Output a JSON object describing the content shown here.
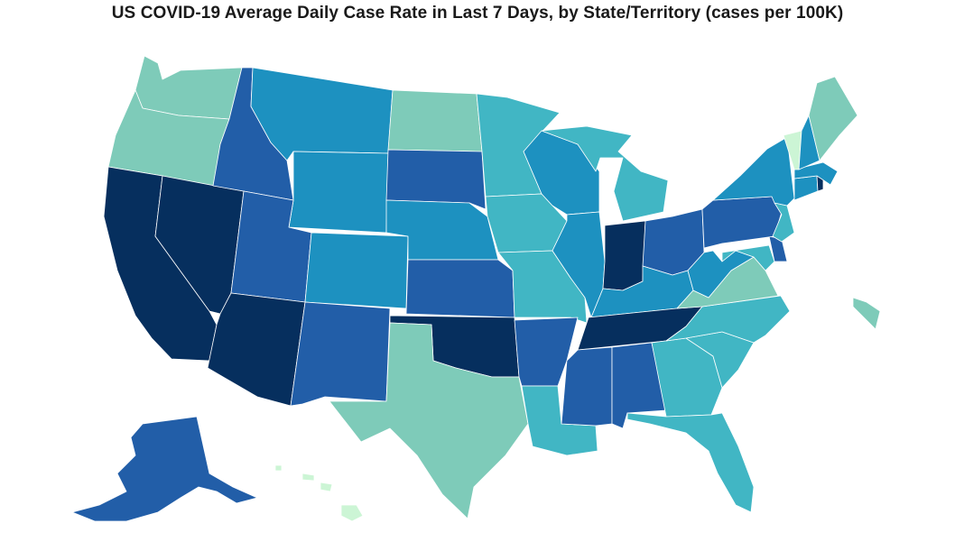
{
  "title": "US COVID-19 Average Daily Case Rate in Last 7 Days, by State/Territory (cases per 100K)",
  "color_scale": {
    "lightest": "#ccf5d5",
    "level2": "#7ecbb9",
    "level3": "#41b6c4",
    "level4": "#1d91c0",
    "level5": "#225ea8",
    "darkest": "#062f5e"
  },
  "states": {
    "WA": "level2",
    "OR": "level2",
    "CA": "darkest",
    "NV": "darkest",
    "ID": "level5",
    "MT": "level4",
    "WY": "level4",
    "UT": "level5",
    "AZ": "darkest",
    "CO": "level4",
    "NM": "level5",
    "ND": "level2",
    "SD": "level5",
    "NE": "level4",
    "KS": "level5",
    "OK": "darkest",
    "TX": "level2",
    "MN": "level3",
    "IA": "level3",
    "MO": "level3",
    "AR": "level5",
    "LA": "level3",
    "WI": "level4",
    "IL": "level4",
    "MS": "level5",
    "MI": "level3",
    "IN": "darkest",
    "KY": "level4",
    "TN": "darkest",
    "AL": "level5",
    "OH": "level5",
    "WV": "level4",
    "VA": "level2",
    "NC": "level3",
    "SC": "level3",
    "GA": "level3",
    "FL": "level3",
    "PA": "level5",
    "NY": "level4",
    "NJ": "level3",
    "DE": "level5",
    "MD": "level3",
    "CT": "level4",
    "RI": "darkest",
    "MA": "level4",
    "VT": "lightest",
    "NH": "level4",
    "ME": "level2",
    "AK": "level5",
    "HI": "lightest",
    "PR": "level2"
  }
}
